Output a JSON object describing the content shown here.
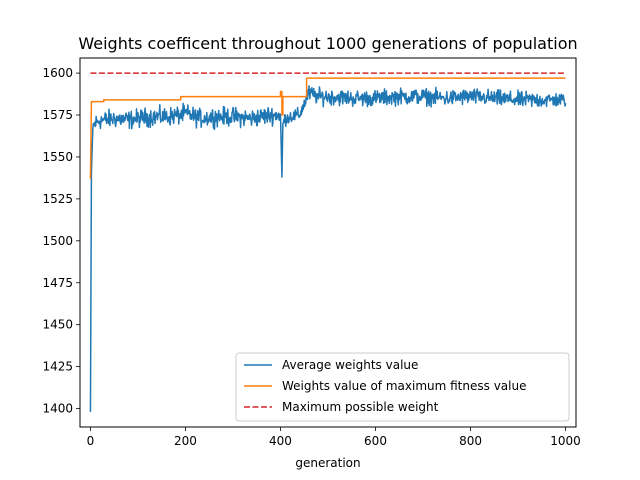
{
  "chart_data": {
    "type": "line",
    "title": "Weights coefficent throughout 1000 generations of population",
    "xlabel": "generation",
    "ylabel": "",
    "xlim": [
      -22,
      1022
    ],
    "ylim": [
      1389,
      1609
    ],
    "xticks": [
      0,
      200,
      400,
      600,
      800,
      1000
    ],
    "yticks": [
      1400,
      1425,
      1450,
      1475,
      1500,
      1525,
      1550,
      1575,
      1600
    ],
    "grid": false,
    "legend_position": "lower-right",
    "series": [
      {
        "name": "Average weights value",
        "color": "#1f77b4",
        "style": "solid",
        "noisy": true,
        "x": [
          0,
          2,
          5,
          10,
          20,
          30,
          50,
          80,
          100,
          130,
          160,
          190,
          200,
          230,
          260,
          300,
          340,
          380,
          400,
          403,
          405,
          410,
          420,
          440,
          455,
          460,
          480,
          500,
          550,
          600,
          650,
          700,
          750,
          800,
          850,
          900,
          950,
          1000
        ],
        "values": [
          1398,
          1540,
          1568,
          1570,
          1572,
          1572,
          1573,
          1572,
          1573,
          1574,
          1574,
          1575,
          1576,
          1573,
          1574,
          1574,
          1573,
          1575,
          1575,
          1538,
          1570,
          1573,
          1574,
          1575,
          1585,
          1588,
          1586,
          1586,
          1585,
          1585,
          1586,
          1586,
          1585,
          1586,
          1585,
          1584,
          1584,
          1584
        ],
        "noise": [
          0,
          0,
          6,
          8,
          8,
          8,
          8,
          8,
          8,
          8,
          8,
          8,
          8,
          8,
          8,
          8,
          8,
          8,
          6,
          0,
          4,
          6,
          6,
          6,
          6,
          7,
          7,
          7,
          7,
          7,
          7,
          7,
          7,
          7,
          7,
          7,
          7,
          6
        ]
      },
      {
        "name": "Weights value of maximum fitness value",
        "color": "#ff7f0e",
        "style": "step",
        "x": [
          0,
          2,
          28,
          28,
          190,
          190,
          400,
          400,
          403,
          403,
          405,
          405,
          455,
          455,
          1000
        ],
        "values": [
          1537,
          1583,
          1583,
          1584,
          1584,
          1586,
          1586,
          1589,
          1589,
          1575,
          1575,
          1586,
          1586,
          1597,
          1597
        ]
      },
      {
        "name": "Maximum possible weight",
        "color": "#d62728",
        "style": "dashed",
        "x": [
          0,
          1000
        ],
        "values": [
          1600,
          1600
        ]
      }
    ]
  }
}
